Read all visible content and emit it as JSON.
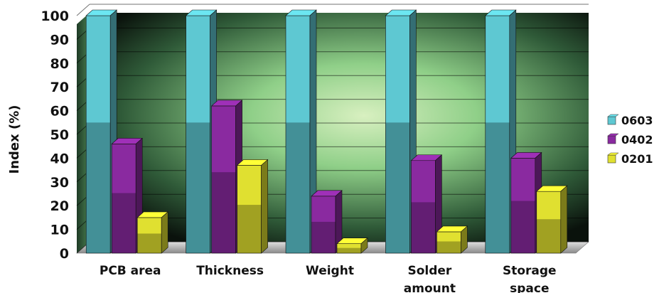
{
  "chart_data": {
    "type": "bar",
    "title": "",
    "xlabel": "",
    "ylabel": "Index (%)",
    "ylim": [
      0,
      100
    ],
    "yticks": [
      0,
      10,
      20,
      30,
      40,
      50,
      60,
      70,
      80,
      90,
      100
    ],
    "grid": true,
    "legend_position": "right",
    "categories": [
      [
        "PCB area"
      ],
      [
        "Thickness"
      ],
      [
        "Weight"
      ],
      [
        "Solder",
        "amount"
      ],
      [
        "Storage",
        "space"
      ]
    ],
    "series": [
      {
        "name": "0603",
        "color": "#5ec8d2",
        "values": [
          100,
          100,
          100,
          100,
          100
        ]
      },
      {
        "name": "0402",
        "color": "#8a2aa0",
        "values": [
          46,
          62,
          24,
          39,
          40
        ]
      },
      {
        "name": "0201",
        "color": "#e0e030",
        "values": [
          15,
          37,
          4,
          9,
          26
        ]
      }
    ]
  }
}
